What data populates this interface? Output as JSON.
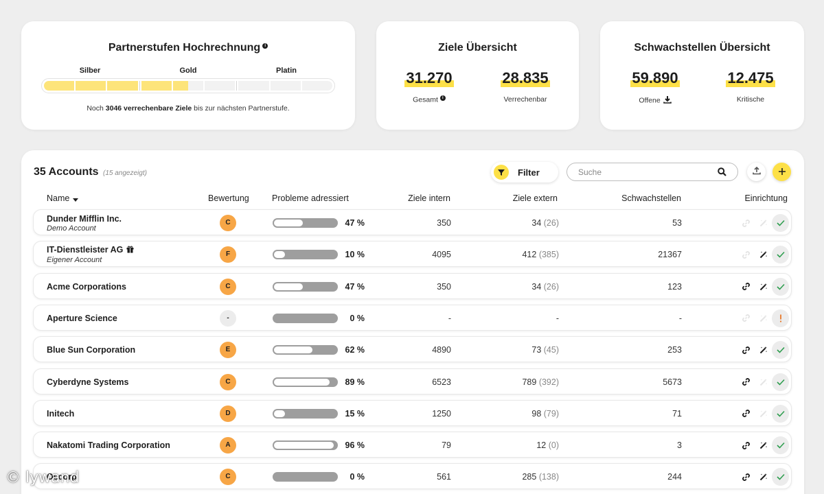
{
  "partner": {
    "title": "Partnerstufen Hochrechnung",
    "info_icon": "info-icon",
    "tiers": [
      {
        "label": "Silber",
        "segments": 3,
        "filled": 3
      },
      {
        "label": "Gold",
        "segments": 3,
        "filled": 1.5
      },
      {
        "label": "Platin",
        "segments": 3,
        "filled": 0
      }
    ],
    "note_prefix": "Noch ",
    "note_bold": "3046 verrechenbare Ziele",
    "note_suffix": " bis zur nächsten Partnerstufe.",
    "bar_color": "#fde47a"
  },
  "goals": {
    "title": "Ziele Übersicht",
    "total_value": "31.270",
    "total_label": "Gesamt",
    "billable_value": "28.835",
    "billable_label": "Verrechenbar"
  },
  "vulns": {
    "title": "Schwachstellen Übersicht",
    "open_value": "59.890",
    "open_label": "Offene",
    "critical_value": "12.475",
    "critical_label": "Kritische"
  },
  "accounts": {
    "count_label": "35 Accounts",
    "shown_label": "(15 angezeigt)",
    "filter_label": "Filter",
    "search_placeholder": "Suche",
    "columns": {
      "name": "Name",
      "rating": "Bewertung",
      "issues": "Probleme adressiert",
      "internal": "Ziele intern",
      "external": "Ziele extern",
      "vulns": "Schwachstellen",
      "setup": "Einrichtung"
    },
    "rows": [
      {
        "name": "Dunder Mifflin Inc.",
        "sub": "Demo Account",
        "gift": false,
        "grade": "C",
        "pct": 47,
        "pct_label": "47 %",
        "internal": "350",
        "external": "34",
        "external_paren": "(26)",
        "vulns": "53",
        "link": false,
        "tool": false,
        "status": "check"
      },
      {
        "name": "IT-Dienstleister AG",
        "sub": "Eigener Account",
        "gift": true,
        "grade": "F",
        "pct": 10,
        "pct_label": "10 %",
        "internal": "4095",
        "external": "412",
        "external_paren": "(385)",
        "vulns": "21367",
        "link": false,
        "tool": true,
        "status": "check"
      },
      {
        "name": "Acme Corporations",
        "sub": "",
        "gift": false,
        "grade": "C",
        "pct": 47,
        "pct_label": "47 %",
        "internal": "350",
        "external": "34",
        "external_paren": "(26)",
        "vulns": "123",
        "link": true,
        "tool": true,
        "status": "check"
      },
      {
        "name": "Aperture Science",
        "sub": "",
        "gift": false,
        "grade": "-",
        "pct": 0,
        "pct_label": "0 %",
        "internal": "-",
        "external": "-",
        "external_paren": "",
        "vulns": "-",
        "link": false,
        "tool": false,
        "status": "alert"
      },
      {
        "name": "Blue Sun Corporation",
        "sub": "",
        "gift": false,
        "grade": "E",
        "pct": 62,
        "pct_label": "62 %",
        "internal": "4890",
        "external": "73",
        "external_paren": "(45)",
        "vulns": "253",
        "link": true,
        "tool": true,
        "status": "check"
      },
      {
        "name": "Cyberdyne Systems",
        "sub": "",
        "gift": false,
        "grade": "C",
        "pct": 89,
        "pct_label": "89 %",
        "internal": "6523",
        "external": "789",
        "external_paren": "(392)",
        "vulns": "5673",
        "link": true,
        "tool": false,
        "status": "check"
      },
      {
        "name": "Initech",
        "sub": "",
        "gift": false,
        "grade": "D",
        "pct": 15,
        "pct_label": "15 %",
        "internal": "1250",
        "external": "98",
        "external_paren": "(79)",
        "vulns": "71",
        "link": true,
        "tool": false,
        "status": "check"
      },
      {
        "name": "Nakatomi Trading Corporation",
        "sub": "",
        "gift": false,
        "grade": "A",
        "pct": 96,
        "pct_label": "96 %",
        "internal": "79",
        "external": "12",
        "external_paren": "(0)",
        "vulns": "3",
        "link": true,
        "tool": true,
        "status": "check"
      },
      {
        "name": "Oscorp",
        "sub": "",
        "gift": false,
        "grade": "C",
        "pct": 0,
        "pct_label": "0 %",
        "internal": "561",
        "external": "285",
        "external_paren": "(138)",
        "vulns": "244",
        "link": true,
        "tool": true,
        "status": "check"
      }
    ]
  },
  "colors": {
    "accent_yellow": "#fde047",
    "grade_orange": "#f7a646",
    "check_green": "#2e9e4f",
    "alert_orange": "#e8792a"
  },
  "watermark": "© lywand"
}
